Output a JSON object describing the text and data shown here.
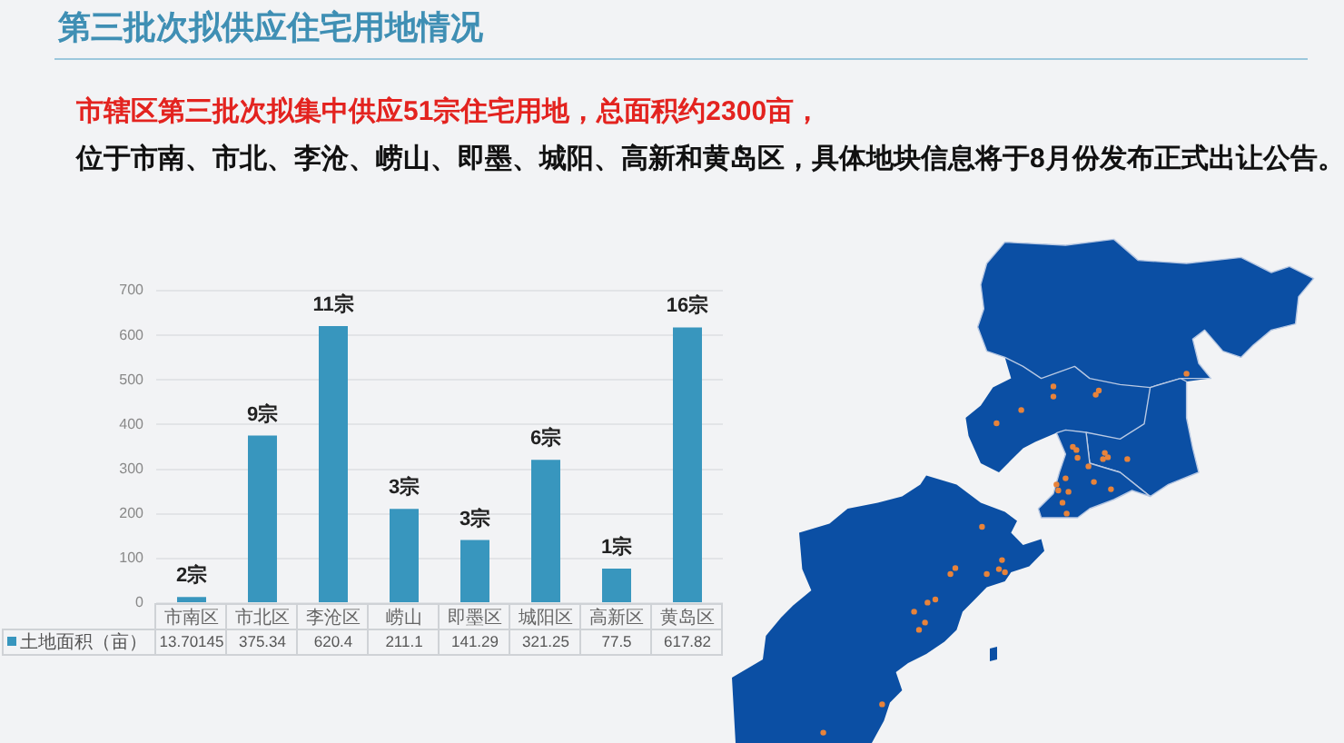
{
  "chart_data": {
    "type": "bar",
    "title": "第三批次拟供应住宅用地情况",
    "subtitle": "市辖区第三批次拟集中供应51宗住宅用地，总面积约2300亩，",
    "annotations": [
      "位于市南、市北、李沧、崂山、即墨、城阳、高新和黄岛区，具体地块信息将于8月份发布正式出让公告。",
      {
        "text": "2宗",
        "x": "市南区",
        "y": 13.70145
      },
      {
        "text": "9宗",
        "x": "市北区",
        "y": 375.34
      },
      {
        "text": "11宗",
        "x": "李沧区",
        "y": 620.4
      },
      {
        "text": "3宗",
        "x": "崂山",
        "y": 211.1
      },
      {
        "text": "3宗",
        "x": "即墨区",
        "y": 141.29
      },
      {
        "text": "6宗",
        "x": "城阳区",
        "y": 321.25
      },
      {
        "text": "1宗",
        "x": "高新区",
        "y": 77.5
      },
      {
        "text": "16宗",
        "x": "黄岛区",
        "y": 617.82
      }
    ],
    "categories": [
      "市南区",
      "市北区",
      "李沧区",
      "崂山",
      "即墨区",
      "城阳区",
      "高新区",
      "黄岛区"
    ],
    "series": [
      {
        "name": "土地面积（亩）",
        "color": "#3896be",
        "values": [
          13.70145,
          375.34,
          620.4,
          211.1,
          141.29,
          321.25,
          77.5,
          617.82
        ]
      }
    ],
    "ylim": [
      0,
      700
    ],
    "yticks": [
      0,
      100,
      200,
      300,
      400,
      500,
      600,
      700
    ],
    "grid": "y",
    "legend": "bottom",
    "data_labels": true
  }
}
